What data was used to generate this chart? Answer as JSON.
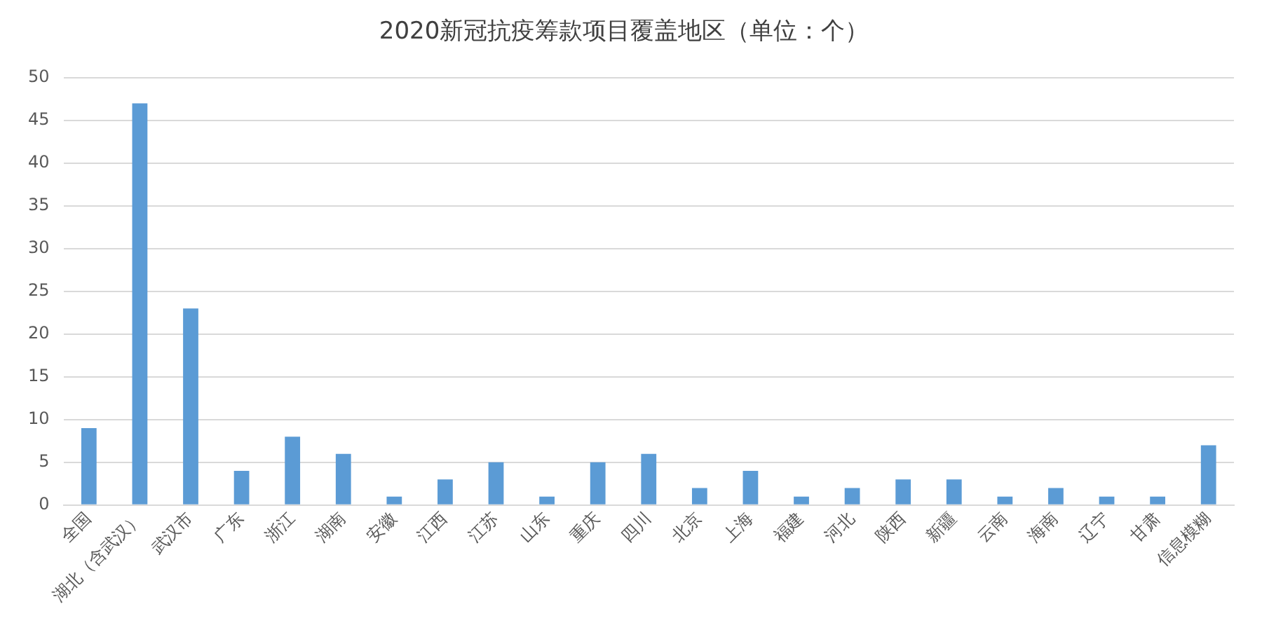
{
  "chart_data": {
    "type": "bar",
    "title": "2020新冠抗疫筹款项目覆盖地区（单位：个）",
    "categories": [
      "全国",
      "湖北（含武汉）",
      "武汉市",
      "广东",
      "浙江",
      "湖南",
      "安徽",
      "江西",
      "江苏",
      "山东",
      "重庆",
      "四川",
      "北京",
      "上海",
      "福建",
      "河北",
      "陕西",
      "新疆",
      "云南",
      "海南",
      "辽宁",
      "甘肃",
      "信息模糊"
    ],
    "values": [
      9,
      47,
      23,
      4,
      8,
      6,
      1,
      3,
      5,
      1,
      5,
      6,
      2,
      4,
      1,
      2,
      3,
      3,
      1,
      2,
      1,
      1,
      7
    ],
    "color": "#5b9bd5",
    "ylim": [
      0,
      50
    ],
    "yticks": [
      0,
      5,
      10,
      15,
      20,
      25,
      30,
      35,
      40,
      45,
      50
    ],
    "grid": "y",
    "legend": false
  }
}
